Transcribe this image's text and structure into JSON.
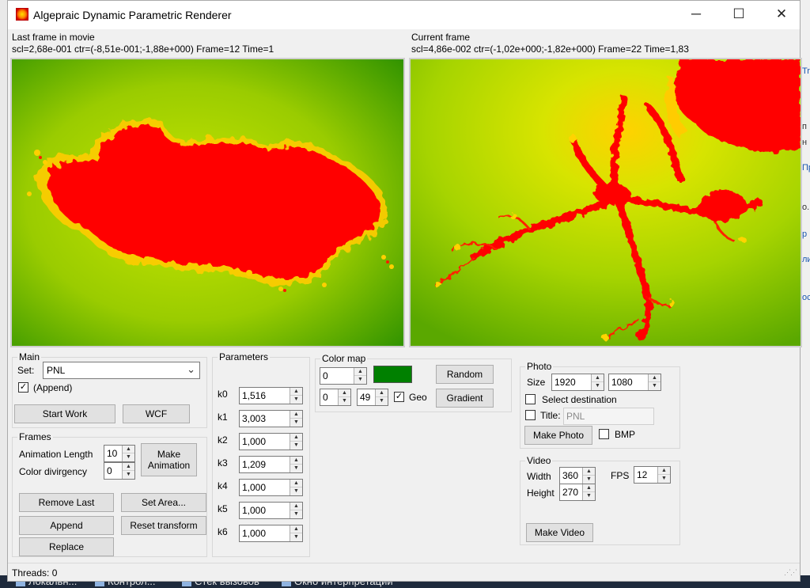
{
  "window": {
    "title": "Algepraic Dynamic Parametric Renderer",
    "minimize_glyph": "─",
    "maximize_glyph": "☐",
    "close_glyph": "✕"
  },
  "last_frame": {
    "heading": "Last frame in movie",
    "info": "scl=2,68e-001 ctr=(-8,51e-001;-1,88e+000) Frame=12 Time=1"
  },
  "current_frame": {
    "heading": "Current frame",
    "info": "scl=4,86e-002 ctr=(-1,02e+000;-1,82e+000) Frame=22 Time=1,83"
  },
  "main": {
    "group_title": "Main",
    "set_label": "Set:",
    "set_value": "PNL",
    "append_label": "(Append)",
    "append_checked": true,
    "start_work": "Start Work",
    "wcf": "WCF"
  },
  "frames": {
    "group_title": "Frames",
    "animation_length_label": "Animation Length",
    "animation_length_value": "10",
    "color_divergency_label": "Color divirgency",
    "color_divergency_value": "0",
    "make_animation": "Make Animation",
    "remove_last": "Remove Last",
    "set_area": "Set Area...",
    "append": "Append",
    "reset_transform": "Reset transform",
    "replace": "Replace"
  },
  "parameters": {
    "group_title": "Parameters",
    "items": [
      {
        "label": "k0",
        "value": "1,516"
      },
      {
        "label": "k1",
        "value": "3,003"
      },
      {
        "label": "k2",
        "value": "1,000"
      },
      {
        "label": "k3",
        "value": "1,209"
      },
      {
        "label": "k4",
        "value": "1,000"
      },
      {
        "label": "k5",
        "value": "1,000"
      },
      {
        "label": "k6",
        "value": "1,000"
      }
    ]
  },
  "color_map": {
    "group_title": "Color map",
    "value1": "0",
    "value2": "0",
    "value3": "49",
    "swatch_color": "#008000",
    "geo_label": "Geo",
    "geo_checked": true,
    "random": "Random",
    "gradient": "Gradient"
  },
  "photo": {
    "group_title": "Photo",
    "size_label": "Size",
    "width": "1920",
    "height": "1080",
    "select_destination": "Select destination",
    "title_label": "Title:",
    "title_value": "PNL",
    "make_photo": "Make Photo",
    "bmp_label": "BMP"
  },
  "video": {
    "group_title": "Video",
    "width_label": "Width",
    "width_value": "360",
    "height_label": "Height",
    "height_value": "270",
    "fps_label": "FPS",
    "fps_value": "12",
    "make_video": "Make Video"
  },
  "status": {
    "threads": "Threads: 0"
  },
  "background": {
    "right_fragments": [
      "Tr",
      "п",
      "н",
      "Пр",
      "о.",
      "р",
      "ли",
      "ос"
    ],
    "taskbar_items": [
      "Локальн...",
      "Контрол...",
      "Стек вызовов",
      "Окно интерпретации"
    ]
  },
  "colors": {
    "fractal_red": "#ff0000",
    "fractal_yellow": "#ffe000",
    "field_green": "#3f9f00",
    "field_lime": "#b8e000"
  }
}
